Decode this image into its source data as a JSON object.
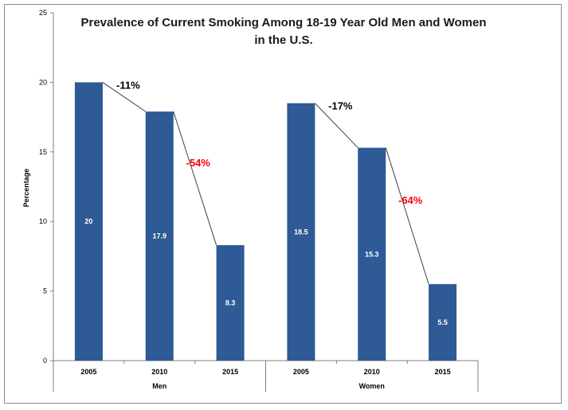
{
  "chart_data": {
    "type": "bar",
    "title_line1": "Prevalence of Current Smoking Among 18-19 Year Old Men and Women",
    "title_line2": "in the U.S.",
    "ylabel": "Percentage",
    "xlabel": "",
    "ylim": [
      0,
      25
    ],
    "yticks": [
      0,
      5,
      10,
      15,
      20,
      25
    ],
    "grid": false,
    "bar_color": "#2e5a95",
    "line_color": "#404040",
    "groups": [
      {
        "name": "Men",
        "categories": [
          "2005",
          "2010",
          "2015"
        ],
        "values": [
          20,
          17.9,
          8.3
        ],
        "labels": [
          "20",
          "17.9",
          "8.3"
        ],
        "changes": [
          {
            "text": "-11%",
            "color": "#000000"
          },
          {
            "text": "-54%",
            "color": "#ff0000"
          }
        ]
      },
      {
        "name": "Women",
        "categories": [
          "2005",
          "2010",
          "2015"
        ],
        "values": [
          18.5,
          15.3,
          5.5
        ],
        "labels": [
          "18.5",
          "15.3",
          "5.5"
        ],
        "changes": [
          {
            "text": "-17%",
            "color": "#000000"
          },
          {
            "text": "-64%",
            "color": "#ff0000"
          }
        ]
      }
    ]
  }
}
